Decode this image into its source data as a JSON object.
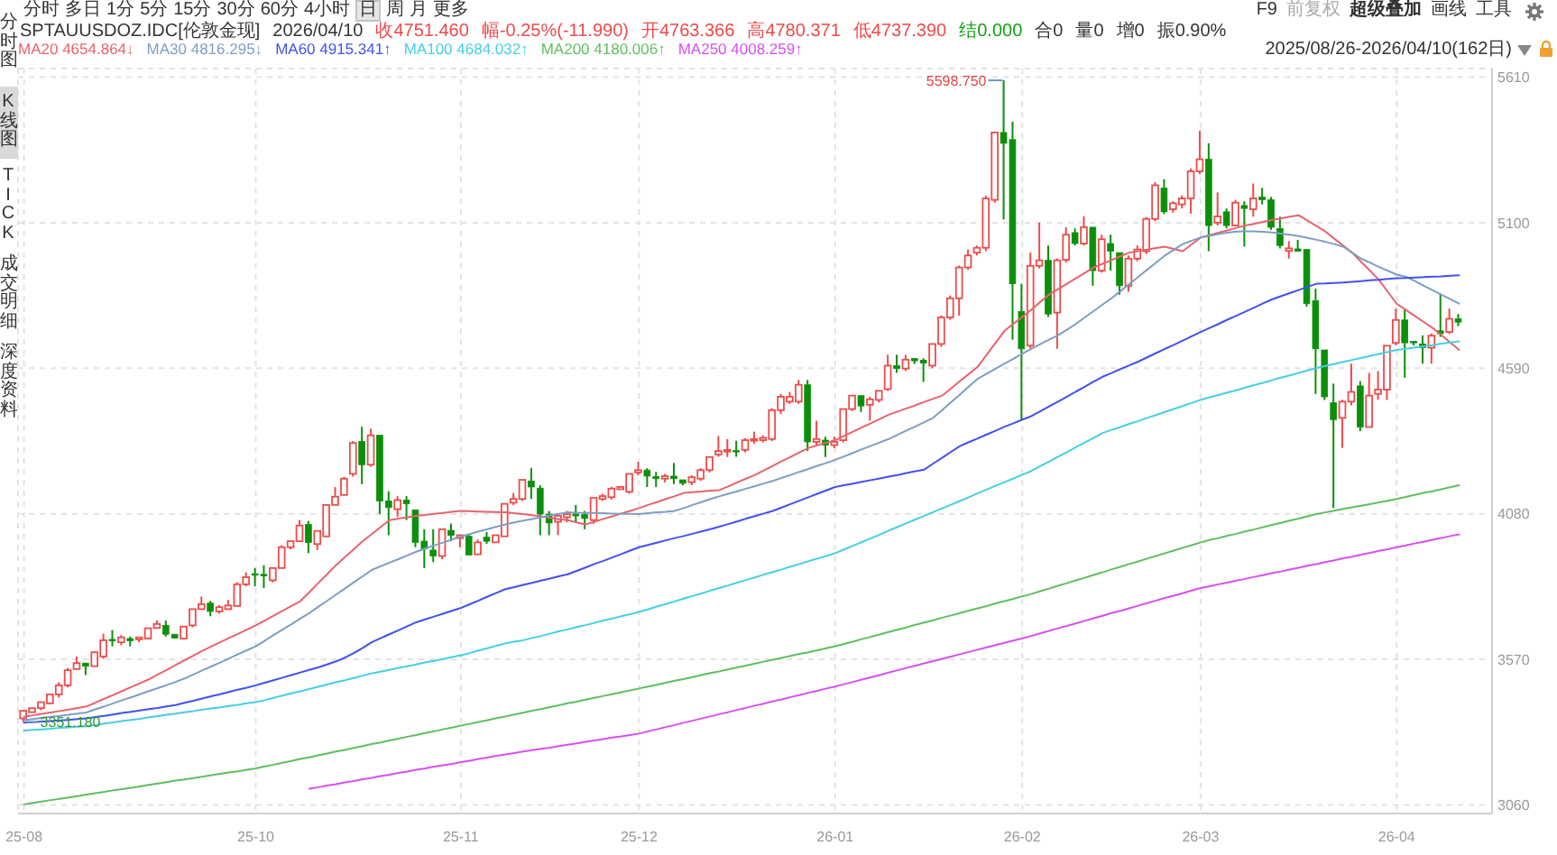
{
  "chart_data": {
    "type": "candlestick",
    "title": "SPTAUUSDOZ.IDC[伦敦金现]",
    "categories": [
      "25-08",
      null,
      null,
      null,
      null,
      null,
      null,
      null,
      null,
      null,
      null,
      null,
      null,
      null,
      null,
      null,
      null,
      null,
      null,
      null,
      null,
      null,
      null,
      null,
      null,
      null,
      "25-10",
      null,
      null,
      null,
      null,
      null,
      null,
      null,
      null,
      null,
      null,
      null,
      null,
      null,
      null,
      null,
      null,
      null,
      null,
      null,
      null,
      null,
      null,
      "25-11",
      null,
      null,
      null,
      null,
      null,
      null,
      null,
      null,
      null,
      null,
      null,
      null,
      null,
      null,
      null,
      null,
      null,
      null,
      null,
      "25-12",
      null,
      null,
      null,
      null,
      null,
      null,
      null,
      null,
      null,
      null,
      null,
      null,
      null,
      null,
      null,
      null,
      null,
      null,
      null,
      null,
      null,
      "26-01",
      null,
      null,
      null,
      null,
      null,
      null,
      null,
      null,
      null,
      null,
      null,
      null,
      null,
      null,
      null,
      null,
      null,
      null,
      null,
      null,
      "26-02",
      null,
      null,
      null,
      null,
      null,
      null,
      null,
      null,
      null,
      null,
      null,
      null,
      null,
      null,
      null,
      null,
      null,
      null,
      null,
      "26-03",
      null,
      null,
      null,
      null,
      null,
      null,
      null,
      null,
      null,
      null,
      null,
      null,
      null,
      null,
      null,
      null,
      null,
      null,
      null,
      null,
      null,
      "26-04",
      null,
      null,
      null,
      null,
      null,
      null,
      null
    ],
    "ohlc": [
      [
        3363,
        3393,
        3351.18,
        3390
      ],
      [
        3385,
        3405,
        3380,
        3399
      ],
      [
        3399,
        3424,
        3392,
        3420
      ],
      [
        3416,
        3452,
        3410,
        3447
      ],
      [
        3447,
        3490,
        3436,
        3479
      ],
      [
        3479,
        3540,
        3472,
        3532
      ],
      [
        3536,
        3580,
        3530,
        3557
      ],
      [
        3557,
        3563,
        3515,
        3546
      ],
      [
        3546,
        3600,
        3540,
        3595
      ],
      [
        3580,
        3660,
        3572,
        3637
      ],
      [
        3640,
        3673,
        3616,
        3636
      ],
      [
        3630,
        3655,
        3620,
        3647
      ],
      [
        3643,
        3650,
        3616,
        3635
      ],
      [
        3640,
        3650,
        3630,
        3647
      ],
      [
        3643,
        3685,
        3638,
        3679
      ],
      [
        3680,
        3707,
        3675,
        3694
      ],
      [
        3689,
        3706,
        3650,
        3658
      ],
      [
        3658,
        3664,
        3640,
        3645
      ],
      [
        3643,
        3690,
        3638,
        3685
      ],
      [
        3689,
        3750,
        3682,
        3746
      ],
      [
        3746,
        3790,
        3740,
        3763
      ],
      [
        3767,
        3775,
        3721,
        3738
      ],
      [
        3738,
        3760,
        3730,
        3753
      ],
      [
        3746,
        3778,
        3742,
        3759
      ],
      [
        3757,
        3840,
        3752,
        3833
      ],
      [
        3833,
        3875,
        3826,
        3858
      ],
      [
        3870,
        3890,
        3826,
        3866
      ],
      [
        3868,
        3900,
        3820,
        3864
      ],
      [
        3847,
        3895,
        3840,
        3890
      ],
      [
        3890,
        3970,
        3885,
        3963
      ],
      [
        3963,
        3990,
        3955,
        3984
      ],
      [
        3984,
        4058,
        3978,
        4039
      ],
      [
        4043,
        4055,
        3942,
        3980
      ],
      [
        3974,
        4025,
        3953,
        4020
      ],
      [
        4001,
        4115,
        3995,
        4111
      ],
      [
        4111,
        4174,
        4105,
        4140
      ],
      [
        4146,
        4210,
        4140,
        4203
      ],
      [
        4220,
        4335,
        4210,
        4328
      ],
      [
        4334,
        4385,
        4184,
        4252
      ],
      [
        4252,
        4378,
        4245,
        4355
      ],
      [
        4355,
        4360,
        4079,
        4125
      ],
      [
        4125,
        4159,
        4005,
        4102
      ],
      [
        4096,
        4142,
        4069,
        4128
      ],
      [
        4128,
        4142,
        4058,
        4115
      ],
      [
        4094,
        4100,
        3963,
        3980
      ],
      [
        3984,
        4026,
        3890,
        3957
      ],
      [
        3953,
        4026,
        3911,
        3932
      ],
      [
        3932,
        4030,
        3921,
        4026
      ],
      [
        4022,
        4046,
        3984,
        4005
      ],
      [
        3995,
        4010,
        3963,
        4005
      ],
      [
        4001,
        4010,
        3932,
        3936
      ],
      [
        3938,
        3990,
        3932,
        3980
      ],
      [
        3998,
        4016,
        3975,
        3984
      ],
      [
        3980,
        4010,
        3975,
        4005
      ],
      [
        4001,
        4120,
        3995,
        4115
      ],
      [
        4119,
        4153,
        4110,
        4132
      ],
      [
        4132,
        4205,
        4125,
        4199
      ],
      [
        4195,
        4241,
        4132,
        4174
      ],
      [
        4170,
        4180,
        4005,
        4079
      ],
      [
        4079,
        4090,
        4005,
        4048
      ],
      [
        4052,
        4080,
        4005,
        4073
      ],
      [
        4068,
        4090,
        4050,
        4079
      ],
      [
        4079,
        4111,
        4048,
        4073
      ],
      [
        4077,
        4090,
        4026,
        4064
      ],
      [
        4058,
        4142,
        4045,
        4136
      ],
      [
        4132,
        4150,
        4125,
        4142
      ],
      [
        4138,
        4175,
        4130,
        4168
      ],
      [
        4166,
        4180,
        4160,
        4174
      ],
      [
        4157,
        4225,
        4150,
        4220
      ],
      [
        4225,
        4262,
        4215,
        4233
      ],
      [
        4233,
        4240,
        4174,
        4212
      ],
      [
        4210,
        4227,
        4174,
        4203
      ],
      [
        4203,
        4220,
        4190,
        4212
      ],
      [
        4212,
        4258,
        4184,
        4203
      ],
      [
        4199,
        4205,
        4180,
        4187
      ],
      [
        4191,
        4215,
        4180,
        4208
      ],
      [
        4203,
        4240,
        4195,
        4233
      ],
      [
        4233,
        4285,
        4225,
        4279
      ],
      [
        4288,
        4353,
        4280,
        4300
      ],
      [
        4298,
        4342,
        4279,
        4304
      ],
      [
        4302,
        4336,
        4280,
        4298
      ],
      [
        4304,
        4345,
        4295,
        4338
      ],
      [
        4336,
        4368,
        4325,
        4342
      ],
      [
        4338,
        4355,
        4330,
        4346
      ],
      [
        4342,
        4450,
        4335,
        4443
      ],
      [
        4443,
        4500,
        4430,
        4490
      ],
      [
        4473,
        4507,
        4465,
        4490
      ],
      [
        4473,
        4549,
        4465,
        4532
      ],
      [
        4532,
        4549,
        4300,
        4332
      ],
      [
        4332,
        4406,
        4320,
        4342
      ],
      [
        4338,
        4350,
        4279,
        4321
      ],
      [
        4321,
        4350,
        4310,
        4332
      ],
      [
        4338,
        4450,
        4330,
        4447
      ],
      [
        4447,
        4500,
        4440,
        4494
      ],
      [
        4494,
        4500,
        4437,
        4458
      ],
      [
        4462,
        4490,
        4406,
        4481
      ],
      [
        4479,
        4515,
        4470,
        4511
      ],
      [
        4517,
        4637,
        4510,
        4599
      ],
      [
        4599,
        4637,
        4574,
        4589
      ],
      [
        4589,
        4637,
        4580,
        4620
      ],
      [
        4624,
        4630,
        4605,
        4616
      ],
      [
        4618,
        4625,
        4542,
        4608
      ],
      [
        4599,
        4680,
        4590,
        4675
      ],
      [
        4675,
        4775,
        4665,
        4768
      ],
      [
        4768,
        4845,
        4760,
        4835
      ],
      [
        4835,
        4950,
        4774,
        4943
      ],
      [
        4943,
        5006,
        4935,
        4985
      ],
      [
        4995,
        5020,
        4985,
        5012
      ],
      [
        5012,
        5195,
        5000,
        5185
      ],
      [
        5180,
        5420,
        5170,
        5416
      ],
      [
        5416,
        5598.75,
        5111,
        5378
      ],
      [
        5391,
        5454,
        4690,
        4886
      ],
      [
        4789,
        4886,
        4410,
        4658
      ],
      [
        4669,
        4995,
        4660,
        4949
      ],
      [
        4949,
        5100,
        4940,
        4968
      ],
      [
        4968,
        5020,
        4770,
        4780
      ],
      [
        4785,
        4975,
        4658,
        4968
      ],
      [
        4970,
        5084,
        4960,
        5058
      ],
      [
        5065,
        5080,
        5020,
        5027
      ],
      [
        5027,
        5122,
        5020,
        5084
      ],
      [
        5084,
        5090,
        4879,
        4932
      ],
      [
        4932,
        5058,
        4925,
        5042
      ],
      [
        5027,
        5058,
        4932,
        5000
      ],
      [
        4995,
        5000,
        4848,
        4879
      ],
      [
        4879,
        4985,
        4858,
        4974
      ],
      [
        4974,
        5020,
        4965,
        5006
      ],
      [
        5000,
        5120,
        4990,
        5113
      ],
      [
        5113,
        5242,
        5105,
        5231
      ],
      [
        5221,
        5252,
        5130,
        5138
      ],
      [
        5147,
        5175,
        5135,
        5168
      ],
      [
        5164,
        5195,
        5150,
        5185
      ],
      [
        5185,
        5290,
        5132,
        5280
      ],
      [
        5280,
        5423,
        5270,
        5322
      ],
      [
        5322,
        5378,
        5000,
        5090
      ],
      [
        5100,
        5206,
        5090,
        5122
      ],
      [
        5138,
        5150,
        5080,
        5090
      ],
      [
        5090,
        5180,
        5085,
        5170
      ],
      [
        5160,
        5175,
        5016,
        5150
      ],
      [
        5147,
        5237,
        5121,
        5185
      ],
      [
        5190,
        5222,
        5164,
        5180
      ],
      [
        5180,
        5190,
        5075,
        5084
      ],
      [
        5079,
        5121,
        5010,
        5020
      ],
      [
        5001,
        5035,
        4974,
        5010
      ],
      [
        5008,
        5040,
        4995,
        5000
      ],
      [
        5006,
        5010,
        4806,
        4816
      ],
      [
        4827,
        4869,
        4500,
        4658
      ],
      [
        4654,
        4660,
        4479,
        4490
      ],
      [
        4469,
        4536,
        4100,
        4410
      ],
      [
        4416,
        4480,
        4311,
        4473
      ],
      [
        4473,
        4606,
        4460,
        4507
      ],
      [
        4528,
        4545,
        4370,
        4384
      ],
      [
        4384,
        4574,
        4378,
        4494
      ],
      [
        4500,
        4580,
        4480,
        4515
      ],
      [
        4515,
        4675,
        4479,
        4669
      ],
      [
        4679,
        4799,
        4670,
        4759
      ],
      [
        4759,
        4795,
        4557,
        4679
      ],
      [
        4684,
        4690,
        4670,
        4679
      ],
      [
        4675,
        4705,
        4606,
        4662
      ],
      [
        4662,
        4712,
        4606,
        4704
      ],
      [
        4721,
        4852,
        4700,
        4711
      ],
      [
        4717,
        4799,
        4710,
        4763
      ],
      [
        4763.366,
        4780.371,
        4737.39,
        4751.46
      ]
    ],
    "series": [
      {
        "name": "MA20 4654.864↓",
        "type": "line",
        "color": "#e8636d",
        "values": [
          3369,
          3374,
          3379,
          3384,
          3389,
          3394,
          3400,
          3405,
          3418,
          3432,
          3445,
          3459,
          3473,
          3486,
          3500,
          3517,
          3533,
          3550,
          3567,
          3583,
          3600,
          3615,
          3630,
          3645,
          3659,
          3674,
          3689,
          3706,
          3723,
          3740,
          3757,
          3774,
          3805,
          3837,
          3868,
          3900,
          3928,
          3956,
          3984,
          4009,
          4033,
          4058,
          4063,
          4068,
          4073,
          4076,
          4080,
          4083,
          4087,
          4090,
          4089,
          4088,
          4087,
          4086,
          4085,
          4082,
          4079,
          4075,
          4071,
          4066,
          4062,
          4058,
          4050,
          4043,
          4052,
          4062,
          4071,
          4081,
          4090,
          4100,
          4111,
          4121,
          4132,
          4142,
          4153,
          4156,
          4158,
          4161,
          4163,
          4176,
          4190,
          4203,
          4216,
          4232,
          4248,
          4264,
          4279,
          4295,
          4311,
          4320,
          4329,
          4338,
          4353,
          4368,
          4383,
          4397,
          4412,
          4427,
          4438,
          4449,
          4460,
          4472,
          4483,
          4494,
          4519,
          4545,
          4570,
          4595,
          4637,
          4679,
          4721,
          4746,
          4770,
          4795,
          4822,
          4848,
          4867,
          4886,
          4905,
          4924,
          4943,
          4956,
          4969,
          4982,
          4995,
          5000,
          5006,
          5011,
          5016,
          5008,
          5000,
          5024,
          5048,
          5056,
          5065,
          5073,
          5082,
          5090,
          5096,
          5103,
          5109,
          5115,
          5121,
          5126,
          5107,
          5088,
          5069,
          5044,
          5020,
          4995,
          4963,
          4932,
          4900,
          4858,
          4816,
          4795,
          4774,
          4753,
          4732,
          4706,
          4680,
          4654.864
        ]
      },
      {
        "name": "MA30 4816.295↓",
        "type": "line",
        "color": "#7d9ec4",
        "values": [
          3357,
          3361,
          3365,
          3369,
          3372,
          3376,
          3380,
          3384,
          3395,
          3405,
          3416,
          3427,
          3437,
          3448,
          3459,
          3469,
          3480,
          3491,
          3503,
          3517,
          3531,
          3545,
          3559,
          3573,
          3588,
          3602,
          3616,
          3635,
          3655,
          3674,
          3693,
          3713,
          3732,
          3754,
          3775,
          3797,
          3818,
          3840,
          3861,
          3883,
          3896,
          3909,
          3921,
          3934,
          3947,
          3958,
          3969,
          3979,
          3990,
          4001,
          4009,
          4018,
          4026,
          4035,
          4043,
          4050,
          4056,
          4062,
          4068,
          4074,
          4080,
          4085,
          4084,
          4083,
          4083,
          4082,
          4081,
          4080,
          4080,
          4079,
          4082,
          4085,
          4087,
          4090,
          4100,
          4111,
          4121,
          4132,
          4141,
          4150,
          4159,
          4168,
          4177,
          4186,
          4195,
          4206,
          4216,
          4227,
          4237,
          4248,
          4258,
          4269,
          4281,
          4293,
          4306,
          4318,
          4330,
          4342,
          4357,
          4372,
          4386,
          4401,
          4416,
          4443,
          4471,
          4498,
          4526,
          4553,
          4571,
          4588,
          4606,
          4623,
          4641,
          4658,
          4674,
          4690,
          4705,
          4725,
          4745,
          4768,
          4790,
          4813,
          4835,
          4860,
          4885,
          4910,
          4935,
          4960,
          4985,
          5005,
          5025,
          5037,
          5048,
          5054,
          5060,
          5065,
          5069,
          5070,
          5070,
          5068,
          5066,
          5062,
          5058,
          5053,
          5047,
          5040,
          5033,
          5025,
          5016,
          4995,
          4974,
          4960,
          4945,
          4932,
          4918,
          4911,
          4896,
          4880,
          4864,
          4848,
          4832,
          4816.295
        ]
      },
      {
        "name": "MA60 4915.341↑",
        "type": "line",
        "color": "#3f51f0",
        "values": [
          3348,
          3350,
          3352,
          3354,
          3356,
          3358,
          3361,
          3363,
          3368,
          3372,
          3377,
          3382,
          3386,
          3391,
          3396,
          3400,
          3405,
          3410,
          3418,
          3425,
          3433,
          3441,
          3448,
          3456,
          3464,
          3471,
          3479,
          3488,
          3497,
          3506,
          3515,
          3524,
          3533,
          3542,
          3552,
          3563,
          3576,
          3592,
          3610,
          3630,
          3644,
          3658,
          3672,
          3686,
          3700,
          3710,
          3720,
          3730,
          3740,
          3750,
          3763,
          3776,
          3790,
          3803,
          3816,
          3823,
          3831,
          3838,
          3846,
          3853,
          3861,
          3868,
          3880,
          3892,
          3904,
          3915,
          3927,
          3939,
          3951,
          3963,
          3971,
          3979,
          3987,
          3995,
          4002,
          4010,
          4018,
          4026,
          4035,
          4044,
          4053,
          4063,
          4072,
          4081,
          4090,
          4102,
          4114,
          4126,
          4138,
          4150,
          4162,
          4174,
          4180,
          4186,
          4192,
          4198,
          4204,
          4210,
          4216,
          4223,
          4229,
          4235,
          4256,
          4276,
          4297,
          4317,
          4331,
          4344,
          4358,
          4371,
          4385,
          4397,
          4410,
          4422,
          4439,
          4456,
          4473,
          4490,
          4508,
          4525,
          4543,
          4560,
          4573,
          4587,
          4600,
          4613,
          4628,
          4643,
          4658,
          4672,
          4687,
          4702,
          4717,
          4731,
          4745,
          4760,
          4774,
          4788,
          4802,
          4817,
          4831,
          4842,
          4853,
          4864,
          4875,
          4886,
          4887,
          4889,
          4890,
          4893,
          4895,
          4898,
          4900,
          4903,
          4905,
          4906,
          4908,
          4909,
          4911,
          4912,
          4914,
          4915.341
        ]
      },
      {
        "name": "MA100 4684.032↑",
        "type": "line",
        "color": "#45cfe3",
        "values": [
          3321,
          3323,
          3325,
          3327,
          3330,
          3332,
          3334,
          3336,
          3340,
          3345,
          3349,
          3354,
          3358,
          3362,
          3367,
          3371,
          3376,
          3380,
          3385,
          3389,
          3394,
          3398,
          3402,
          3407,
          3411,
          3416,
          3420,
          3427,
          3435,
          3443,
          3451,
          3458,
          3466,
          3474,
          3482,
          3490,
          3497,
          3505,
          3513,
          3521,
          3527,
          3533,
          3540,
          3546,
          3552,
          3559,
          3565,
          3571,
          3578,
          3584,
          3592,
          3601,
          3609,
          3618,
          3626,
          3632,
          3637,
          3645,
          3652,
          3660,
          3668,
          3675,
          3683,
          3690,
          3698,
          3706,
          3713,
          3721,
          3728,
          3736,
          3745,
          3755,
          3764,
          3773,
          3783,
          3792,
          3801,
          3811,
          3820,
          3829,
          3839,
          3848,
          3857,
          3867,
          3876,
          3885,
          3895,
          3904,
          3914,
          3923,
          3932,
          3942,
          3955,
          3968,
          3981,
          3994,
          4007,
          4021,
          4034,
          4047,
          4060,
          4073,
          4086,
          4099,
          4112,
          4125,
          4138,
          4152,
          4165,
          4178,
          4191,
          4204,
          4217,
          4230,
          4247,
          4263,
          4280,
          4296,
          4313,
          4330,
          4346,
          4363,
          4374,
          4384,
          4395,
          4405,
          4416,
          4426,
          4437,
          4447,
          4458,
          4468,
          4479,
          4488,
          4496,
          4505,
          4513,
          4522,
          4531,
          4539,
          4548,
          4557,
          4565,
          4574,
          4582,
          4591,
          4598,
          4605,
          4612,
          4619,
          4626,
          4633,
          4640,
          4647,
          4654,
          4658,
          4663,
          4667,
          4671,
          4676,
          4680,
          4684.032
        ]
      },
      {
        "name": "MA200 4180.006↑",
        "type": "line",
        "color": "#5fbf5f",
        "values": [
          3062,
          3067,
          3072,
          3077,
          3081,
          3086,
          3091,
          3096,
          3101,
          3106,
          3111,
          3115,
          3120,
          3125,
          3130,
          3135,
          3140,
          3145,
          3149,
          3154,
          3159,
          3164,
          3169,
          3174,
          3178,
          3183,
          3188,
          3195,
          3201,
          3208,
          3214,
          3221,
          3227,
          3234,
          3240,
          3247,
          3253,
          3260,
          3266,
          3273,
          3279,
          3286,
          3292,
          3299,
          3305,
          3312,
          3318,
          3325,
          3331,
          3338,
          3344,
          3351,
          3357,
          3364,
          3370,
          3377,
          3383,
          3390,
          3396,
          3403,
          3409,
          3416,
          3422,
          3429,
          3435,
          3442,
          3448,
          3455,
          3461,
          3468,
          3475,
          3481,
          3488,
          3495,
          3501,
          3508,
          3515,
          3522,
          3528,
          3535,
          3542,
          3548,
          3555,
          3562,
          3569,
          3575,
          3582,
          3589,
          3595,
          3602,
          3609,
          3616,
          3624,
          3632,
          3641,
          3649,
          3657,
          3666,
          3674,
          3682,
          3691,
          3699,
          3707,
          3716,
          3724,
          3732,
          3741,
          3749,
          3757,
          3766,
          3774,
          3782,
          3791,
          3799,
          3809,
          3818,
          3828,
          3837,
          3847,
          3856,
          3866,
          3875,
          3885,
          3894,
          3904,
          3913,
          3923,
          3932,
          3942,
          3951,
          3961,
          3970,
          3980,
          3988,
          3995,
          4003,
          4010,
          4018,
          4025,
          4033,
          4041,
          4048,
          4056,
          4063,
          4071,
          4079,
          4085,
          4091,
          4097,
          4103,
          4108,
          4114,
          4120,
          4126,
          4132,
          4139,
          4146,
          4153,
          4159,
          4166,
          4173,
          4180.006
        ]
      },
      {
        "name": "MA250 4008.259↑",
        "type": "line",
        "color": "#d84ff0",
        "values": [
          null,
          null,
          null,
          null,
          null,
          null,
          null,
          null,
          null,
          null,
          null,
          null,
          null,
          null,
          null,
          null,
          null,
          null,
          null,
          null,
          null,
          null,
          null,
          null,
          null,
          null,
          null,
          null,
          null,
          null,
          null,
          null,
          3117,
          3122,
          3128,
          3133,
          3139,
          3144,
          3150,
          3155,
          3161,
          3166,
          3172,
          3177,
          3183,
          3188,
          3194,
          3199,
          3204,
          3210,
          3215,
          3221,
          3226,
          3232,
          3237,
          3242,
          3247,
          3252,
          3257,
          3261,
          3266,
          3271,
          3276,
          3281,
          3286,
          3291,
          3296,
          3300,
          3305,
          3310,
          3318,
          3325,
          3333,
          3340,
          3348,
          3355,
          3363,
          3370,
          3378,
          3385,
          3393,
          3400,
          3408,
          3415,
          3423,
          3430,
          3438,
          3445,
          3453,
          3460,
          3468,
          3475,
          3483,
          3491,
          3499,
          3507,
          3515,
          3524,
          3532,
          3540,
          3548,
          3556,
          3564,
          3572,
          3580,
          3588,
          3596,
          3604,
          3612,
          3620,
          3628,
          3636,
          3644,
          3652,
          3661,
          3670,
          3679,
          3687,
          3696,
          3705,
          3714,
          3723,
          3732,
          3740,
          3749,
          3758,
          3767,
          3776,
          3785,
          3793,
          3802,
          3811,
          3820,
          3826,
          3833,
          3839,
          3846,
          3852,
          3859,
          3865,
          3872,
          3878,
          3885,
          3891,
          3898,
          3904,
          3911,
          3917,
          3924,
          3930,
          3937,
          3943,
          3950,
          3956,
          3963,
          3969,
          3976,
          3982,
          3989,
          3995,
          4002,
          4008.259
        ]
      }
    ],
    "ylim": [
      3030,
      5640
    ],
    "yticks": [
      3060,
      3570,
      4080,
      4590,
      5100,
      5610
    ],
    "grid": true,
    "legend": "top left",
    "marker": "none",
    "annotations": [
      "分时",
      "多日",
      "1分",
      "5分",
      "15分",
      "30分",
      "60分",
      "4小时",
      "日",
      "周",
      "月",
      "更多",
      "F9",
      "前复权",
      "超级叠加",
      "画线",
      "工具",
      "2026/04/10",
      "收4751.460",
      "幅-0.25%(-11.990)",
      "开4763.366",
      "高4780.371",
      "低4737.390",
      "结0.000",
      "合0",
      "量0",
      "增0",
      "振0.90%",
      "2025/08/26-2026/04/10(162日)",
      "分时图",
      "K线图",
      "TICK",
      "成交明细",
      "深度资料",
      "5598.750",
      "3351.180"
    ]
  }
}
